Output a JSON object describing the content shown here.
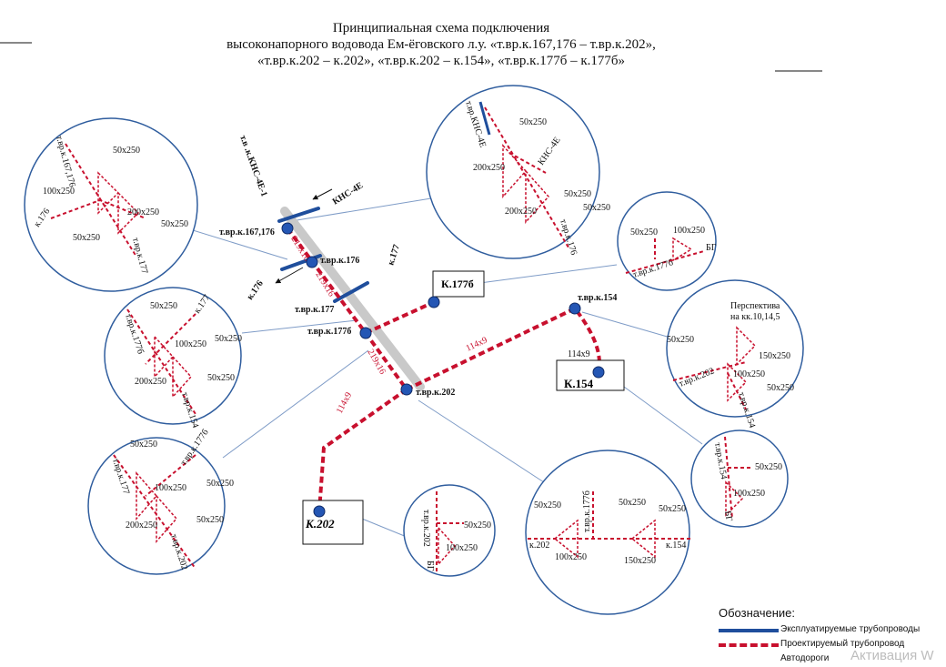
{
  "title": {
    "line1": "Принципиальная схема подключения",
    "line2": "высоконапорного водовода Ем-ёговского л.у. «т.вр.к.167,176 – т.вр.к.202»,",
    "line3": "«т.вр.к.202 – к.202», «т.вр.к.202 – к.154», «т.вр.к.177б – к.177б»"
  },
  "colors": {
    "existing": "#1f4e9c",
    "projected": "#c8102e",
    "road": "#c9c9c9",
    "circle": "#2f5d9e",
    "connector": "#7f9cc7",
    "node": "#2456b4"
  },
  "main": {
    "nodes": {
      "vr167": "т.вр.к.167,176",
      "vr176": "т.вр.к.176",
      "vr177": "т.вр.к.177",
      "vr177b": "т.вр.к.177б",
      "vr202": "т.вр.к.202",
      "vr154": "т.вр.к.154"
    },
    "labels": {
      "kns_top": "т.в  .к.КНС-4Е-1",
      "kns": "КНС-4Е",
      "k177": "к.177",
      "k176": "к.176",
      "pipe_a": "219х16",
      "pipe_b": "219х16",
      "pipe_c": "219х16",
      "pipe_d": "114х9",
      "pipe_e": "114х9",
      "pipe_f": "114х9"
    },
    "boxes": {
      "k177b": "К.177б",
      "k154": "К.154",
      "k202": "К.202"
    }
  },
  "callouts": {
    "c1": {
      "labels": [
        "50х250",
        "100х250",
        "200х250",
        "50х250",
        "50х250"
      ],
      "pipes": [
        "т.вр.к.167,176",
        "к.176",
        "т.вр.к.177"
      ]
    },
    "c2": {
      "labels": [
        "50х250",
        "200х250",
        "50х250",
        "200х250",
        "50х250"
      ],
      "pipes": [
        "т.вр.КНС-4Е",
        "КНС-4Е",
        "т.вр.к.176"
      ]
    },
    "c3": {
      "labels": [
        "50х250",
        "100х250"
      ],
      "pipes": [
        "т.вр.к.177б",
        "БГ"
      ]
    },
    "c4": {
      "labels": [
        "50х250",
        "100х250",
        "50х250",
        "200х250",
        "50х250"
      ],
      "pipes": [
        "к.177",
        "т.вр.к.177б",
        "т.вр.к.154"
      ]
    },
    "c5": {
      "labels": [
        "50х250",
        "150х250",
        "100х250",
        "50х250"
      ],
      "pipes": [
        "т.вр.к.202",
        "т.вр.к.154"
      ],
      "note1": "Перспектива",
      "note2": "на кк.10,14,5"
    },
    "c6": {
      "labels": [
        "50х250",
        "100х250",
        "50х250",
        "200х250",
        "50х250"
      ],
      "pipes": [
        "т.вр.к.177",
        "т.вр.к.177б",
        "т.вр.к.202"
      ]
    },
    "c7": {
      "labels": [
        "50х250",
        "100х250"
      ],
      "pipes": [
        "т.вр.к.202",
        "БГ"
      ]
    },
    "c8": {
      "labels": [
        "50х250",
        "50х250",
        "50х250",
        "100х250",
        "150х250"
      ],
      "pipes": [
        "т.вр.к.177б",
        "к.202",
        "к.154"
      ]
    },
    "c9": {
      "labels": [
        "50х250",
        "100х250"
      ],
      "pipes": [
        "т.вр.к.154",
        "БГ"
      ]
    }
  },
  "legend": {
    "header": "Обозначение:",
    "existing": "Эксплуатируемые трубопроводы",
    "projected": "Проектируемый трубопровод",
    "roads": "Автодороги"
  },
  "watermark": "Активация W"
}
